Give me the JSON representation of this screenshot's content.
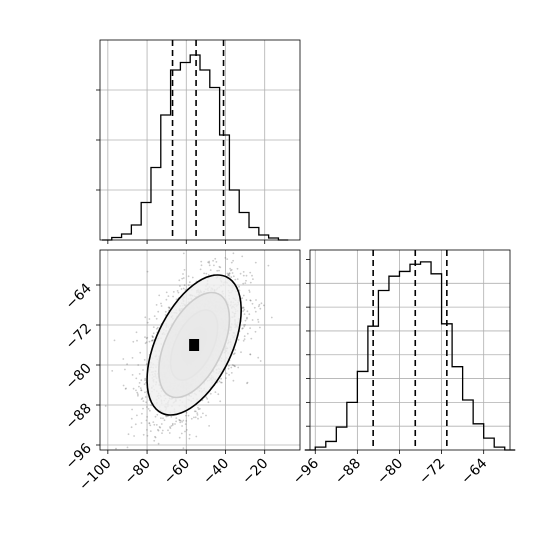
{
  "chart_data": [
    {
      "type": "histogram",
      "panel": "top-left marginal",
      "x_ticks": [
        -100,
        -80,
        -60,
        -40,
        -20
      ],
      "xlim": [
        -104,
        -2
      ],
      "bins": [
        {
          "x0": -103,
          "x1": -98,
          "v": 0.0
        },
        {
          "x0": -98,
          "x1": -93,
          "v": 0.005
        },
        {
          "x0": -93,
          "x1": -88,
          "v": 0.012
        },
        {
          "x0": -88,
          "x1": -83,
          "v": 0.03
        },
        {
          "x0": -83,
          "x1": -78,
          "v": 0.075
        },
        {
          "x0": -78,
          "x1": -73,
          "v": 0.145
        },
        {
          "x0": -73,
          "x1": -68,
          "v": 0.25
        },
        {
          "x0": -68,
          "x1": -63,
          "v": 0.34
        },
        {
          "x0": -63,
          "x1": -58,
          "v": 0.355
        },
        {
          "x0": -58,
          "x1": -53,
          "v": 0.37
        },
        {
          "x0": -53,
          "x1": -48,
          "v": 0.34
        },
        {
          "x0": -48,
          "x1": -43,
          "v": 0.305
        },
        {
          "x0": -43,
          "x1": -38,
          "v": 0.21
        },
        {
          "x0": -38,
          "x1": -33,
          "v": 0.1
        },
        {
          "x0": -33,
          "x1": -28,
          "v": 0.055
        },
        {
          "x0": -28,
          "x1": -23,
          "v": 0.025
        },
        {
          "x0": -23,
          "x1": -18,
          "v": 0.01
        },
        {
          "x0": -18,
          "x1": -13,
          "v": 0.004
        },
        {
          "x0": -13,
          "x1": -8,
          "v": 0.0
        }
      ],
      "ylim": [
        0,
        0.4
      ],
      "quantiles": [
        -67,
        -55,
        -41
      ]
    },
    {
      "type": "scatter+contour",
      "panel": "bottom-left joint",
      "x_ticks": [
        -100,
        -80,
        -60,
        -40,
        -20
      ],
      "y_ticks": [
        -64,
        -72,
        -80,
        -88,
        -96
      ],
      "xlim": [
        -104,
        -2
      ],
      "ylim": [
        -97,
        -57
      ],
      "mean": [
        -56,
        -76
      ],
      "sigma": [
        12,
        7
      ],
      "correlation": 0.5,
      "contour_levels": [
        0.4,
        1.0,
        1.6,
        2.2
      ]
    },
    {
      "type": "histogram",
      "panel": "bottom-right marginal",
      "x_ticks": [
        -96,
        -88,
        -80,
        -72,
        -64
      ],
      "xlim": [
        -97,
        -59
      ],
      "bins": [
        {
          "x0": -98,
          "x1": -96,
          "v": 0.0
        },
        {
          "x0": -96,
          "x1": -94,
          "v": 0.006
        },
        {
          "x0": -94,
          "x1": -92,
          "v": 0.018
        },
        {
          "x0": -92,
          "x1": -90,
          "v": 0.048
        },
        {
          "x0": -90,
          "x1": -88,
          "v": 0.1
        },
        {
          "x0": -88,
          "x1": -86,
          "v": 0.165
        },
        {
          "x0": -86,
          "x1": -84,
          "v": 0.26
        },
        {
          "x0": -84,
          "x1": -82,
          "v": 0.335
        },
        {
          "x0": -82,
          "x1": -80,
          "v": 0.365
        },
        {
          "x0": -80,
          "x1": -78,
          "v": 0.375
        },
        {
          "x0": -78,
          "x1": -76,
          "v": 0.39
        },
        {
          "x0": -76,
          "x1": -74,
          "v": 0.395
        },
        {
          "x0": -74,
          "x1": -72,
          "v": 0.37
        },
        {
          "x0": -72,
          "x1": -70,
          "v": 0.265
        },
        {
          "x0": -70,
          "x1": -68,
          "v": 0.175
        },
        {
          "x0": -68,
          "x1": -66,
          "v": 0.105
        },
        {
          "x0": -66,
          "x1": -64,
          "v": 0.055
        },
        {
          "x0": -64,
          "x1": -62,
          "v": 0.025
        },
        {
          "x0": -62,
          "x1": -60,
          "v": 0.006
        },
        {
          "x0": -60,
          "x1": -58,
          "v": 0.0
        }
      ],
      "ylim": [
        0,
        0.42
      ],
      "quantiles": [
        -85,
        -77,
        -71
      ]
    }
  ],
  "colors": {
    "grid": "#b0b0b0",
    "line": "#000000",
    "scatter": "#666666"
  }
}
